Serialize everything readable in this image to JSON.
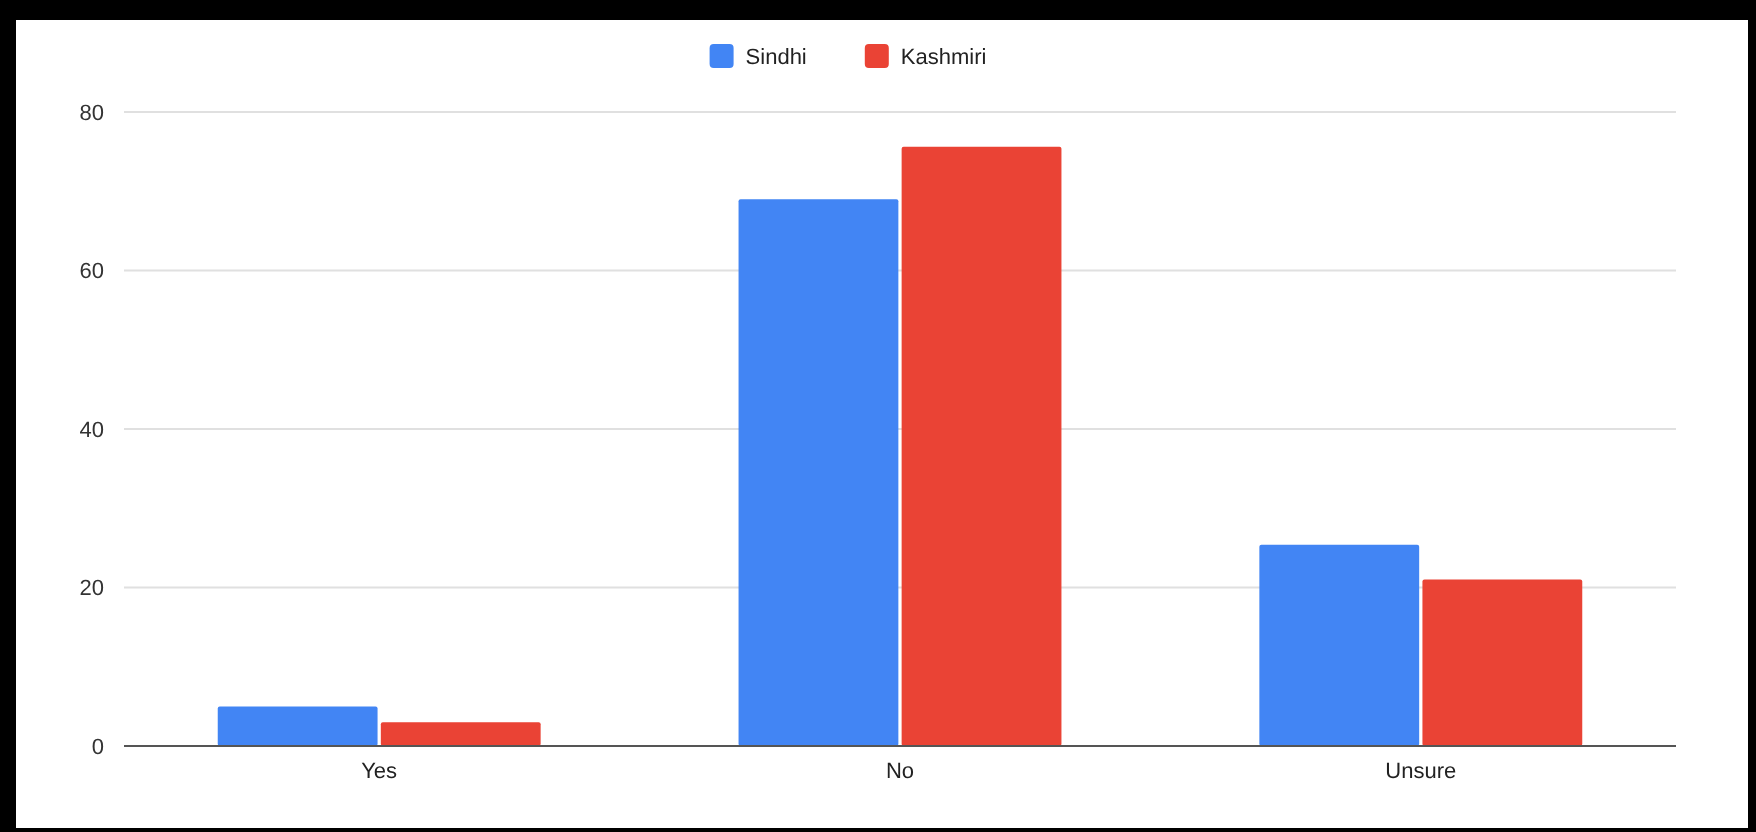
{
  "chart_data": {
    "type": "bar",
    "categories": [
      "Yes",
      "No",
      "Unsure"
    ],
    "series": [
      {
        "name": "Sindhi",
        "color": "#4285f4",
        "values": [
          5,
          69,
          25.4
        ]
      },
      {
        "name": "Kashmiri",
        "color": "#ea4335",
        "values": [
          3,
          75.6,
          21
        ]
      }
    ],
    "ylim": [
      0,
      80
    ],
    "yticks": [
      0,
      20,
      40,
      60,
      80
    ],
    "grid": "y",
    "legend": "top"
  }
}
